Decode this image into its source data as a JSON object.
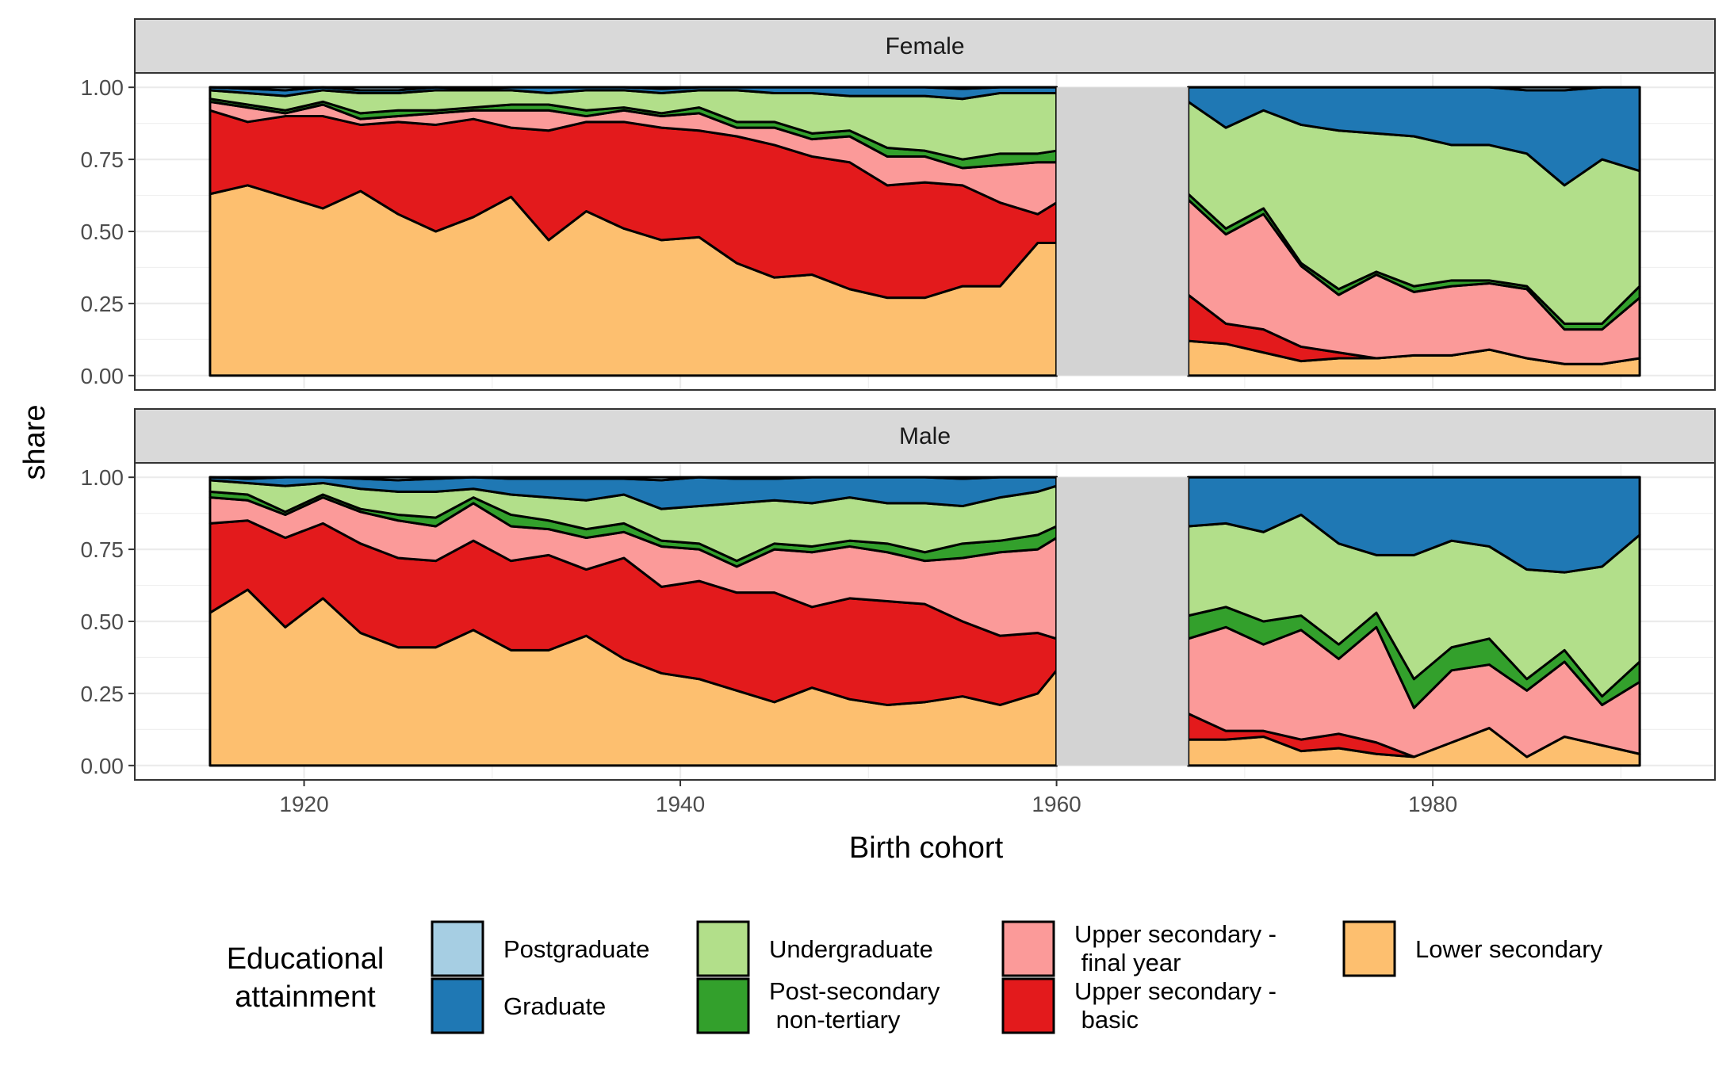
{
  "chart_data": {
    "type": "area",
    "stacked": true,
    "xlabel": "Birth cohort",
    "ylabel": "share",
    "xlim": [
      1911,
      1995
    ],
    "ylim": [
      -0.05,
      1.05
    ],
    "x_ticks": [
      1920,
      1940,
      1960,
      1980
    ],
    "x_tick_labels": [
      "1920",
      "1940",
      "1960",
      "1980"
    ],
    "y_ticks": [
      0,
      0.25,
      0.5,
      0.75,
      1.0
    ],
    "y_tick_labels": [
      "0.00",
      "0.25",
      "0.50",
      "0.75",
      "1.00"
    ],
    "gap_band": [
      1960,
      1967
    ],
    "gap_color": "#d3d3d3",
    "legend": {
      "title_lines": [
        "Educational",
        "attainment"
      ],
      "position": "bottom",
      "items": [
        {
          "key": "postgraduate",
          "label_lines": [
            "Postgraduate"
          ],
          "color": "#a6cee3"
        },
        {
          "key": "graduate",
          "label_lines": [
            "Graduate"
          ],
          "color": "#1f78b4"
        },
        {
          "key": "undergraduate",
          "label_lines": [
            "Undergraduate"
          ],
          "color": "#b2df8a"
        },
        {
          "key": "post_secondary",
          "label_lines": [
            "Post-secondary",
            " non-tertiary"
          ],
          "color": "#33a02c"
        },
        {
          "key": "upper_final",
          "label_lines": [
            "Upper secondary -",
            " final year"
          ],
          "color": "#fb9a99"
        },
        {
          "key": "upper_basic",
          "label_lines": [
            "Upper secondary -",
            " basic"
          ],
          "color": "#e31a1c"
        },
        {
          "key": "lower_secondary",
          "label_lines": [
            "Lower secondary"
          ],
          "color": "#fdbf6f"
        }
      ]
    },
    "panels": [
      {
        "title": "Female",
        "segments": [
          {
            "x": [
              1915,
              1917,
              1919,
              1921,
              1923,
              1925,
              1927,
              1929,
              1931,
              1933,
              1935,
              1937,
              1939,
              1941,
              1943,
              1945,
              1947,
              1949,
              1951,
              1953,
              1955,
              1957,
              1959,
              1960
            ],
            "lower_secondary": [
              0.63,
              0.66,
              0.62,
              0.58,
              0.64,
              0.56,
              0.5,
              0.55,
              0.62,
              0.47,
              0.57,
              0.51,
              0.47,
              0.48,
              0.39,
              0.34,
              0.35,
              0.3,
              0.27,
              0.27,
              0.31,
              0.31,
              0.46,
              0.46
            ],
            "upper_basic": [
              0.92,
              0.88,
              0.9,
              0.9,
              0.87,
              0.88,
              0.87,
              0.89,
              0.86,
              0.85,
              0.88,
              0.88,
              0.86,
              0.85,
              0.83,
              0.8,
              0.76,
              0.74,
              0.66,
              0.67,
              0.66,
              0.6,
              0.56,
              0.6
            ],
            "upper_final": [
              0.95,
              0.93,
              0.91,
              0.94,
              0.89,
              0.9,
              0.91,
              0.92,
              0.92,
              0.92,
              0.9,
              0.92,
              0.9,
              0.91,
              0.86,
              0.86,
              0.82,
              0.83,
              0.76,
              0.76,
              0.72,
              0.73,
              0.74,
              0.74
            ],
            "post_secondary": [
              0.96,
              0.94,
              0.92,
              0.95,
              0.91,
              0.92,
              0.92,
              0.93,
              0.94,
              0.94,
              0.92,
              0.93,
              0.91,
              0.93,
              0.88,
              0.88,
              0.84,
              0.85,
              0.79,
              0.78,
              0.75,
              0.77,
              0.77,
              0.78
            ],
            "undergraduate": [
              0.99,
              0.98,
              0.97,
              0.99,
              0.98,
              0.98,
              0.99,
              0.99,
              0.99,
              0.98,
              0.99,
              0.99,
              0.98,
              0.99,
              0.99,
              0.98,
              0.98,
              0.97,
              0.97,
              0.97,
              0.96,
              0.98,
              0.98,
              0.98
            ],
            "graduate": [
              1.0,
              0.995,
              0.99,
              1.0,
              0.99,
              0.99,
              1.0,
              0.995,
              1.0,
              1.0,
              1.0,
              1.0,
              0.995,
              1.0,
              1.0,
              1.0,
              1.0,
              1.0,
              1.0,
              1.0,
              0.995,
              1.0,
              1.0,
              1.0
            ],
            "postgraduate": [
              1.0,
              1.0,
              1.0,
              1.0,
              1.0,
              1.0,
              1.0,
              1.0,
              1.0,
              1.0,
              1.0,
              1.0,
              1.0,
              1.0,
              1.0,
              1.0,
              1.0,
              1.0,
              1.0,
              1.0,
              1.0,
              1.0,
              1.0,
              1.0
            ]
          },
          {
            "x": [
              1967,
              1969,
              1971,
              1973,
              1975,
              1977,
              1979,
              1981,
              1983,
              1985,
              1987,
              1989,
              1991
            ],
            "lower_secondary": [
              0.12,
              0.11,
              0.08,
              0.05,
              0.06,
              0.06,
              0.07,
              0.07,
              0.09,
              0.06,
              0.04,
              0.04,
              0.06
            ],
            "upper_basic": [
              0.28,
              0.18,
              0.16,
              0.1,
              0.08,
              0.06,
              0.07,
              0.07,
              0.09,
              0.06,
              0.04,
              0.04,
              0.06
            ],
            "upper_final": [
              0.61,
              0.49,
              0.56,
              0.38,
              0.28,
              0.35,
              0.29,
              0.31,
              0.32,
              0.3,
              0.16,
              0.16,
              0.27
            ],
            "post_secondary": [
              0.63,
              0.51,
              0.58,
              0.39,
              0.3,
              0.36,
              0.31,
              0.33,
              0.33,
              0.31,
              0.18,
              0.18,
              0.31
            ],
            "undergraduate": [
              0.95,
              0.86,
              0.92,
              0.87,
              0.85,
              0.84,
              0.83,
              0.8,
              0.8,
              0.77,
              0.66,
              0.75,
              0.71
            ],
            "graduate": [
              1.0,
              1.0,
              1.0,
              1.0,
              1.0,
              1.0,
              1.0,
              1.0,
              1.0,
              0.99,
              0.99,
              1.0,
              1.0
            ],
            "postgraduate": [
              1.0,
              1.0,
              1.0,
              1.0,
              1.0,
              1.0,
              1.0,
              1.0,
              1.0,
              1.0,
              1.0,
              1.0,
              1.0
            ]
          }
        ]
      },
      {
        "title": "Male",
        "segments": [
          {
            "x": [
              1915,
              1917,
              1919,
              1921,
              1923,
              1925,
              1927,
              1929,
              1931,
              1933,
              1935,
              1937,
              1939,
              1941,
              1943,
              1945,
              1947,
              1949,
              1951,
              1953,
              1955,
              1957,
              1959,
              1960
            ],
            "lower_secondary": [
              0.53,
              0.61,
              0.48,
              0.58,
              0.46,
              0.41,
              0.41,
              0.47,
              0.4,
              0.4,
              0.45,
              0.37,
              0.32,
              0.3,
              0.26,
              0.22,
              0.27,
              0.23,
              0.21,
              0.22,
              0.24,
              0.21,
              0.25,
              0.33
            ],
            "upper_basic": [
              0.84,
              0.85,
              0.79,
              0.84,
              0.77,
              0.72,
              0.71,
              0.78,
              0.71,
              0.73,
              0.68,
              0.72,
              0.62,
              0.64,
              0.6,
              0.6,
              0.55,
              0.58,
              0.57,
              0.56,
              0.5,
              0.45,
              0.46,
              0.44
            ],
            "upper_final": [
              0.93,
              0.92,
              0.87,
              0.93,
              0.88,
              0.85,
              0.83,
              0.91,
              0.83,
              0.82,
              0.79,
              0.81,
              0.76,
              0.75,
              0.69,
              0.75,
              0.74,
              0.76,
              0.74,
              0.71,
              0.72,
              0.74,
              0.75,
              0.79
            ],
            "post_secondary": [
              0.95,
              0.94,
              0.88,
              0.94,
              0.89,
              0.87,
              0.86,
              0.93,
              0.87,
              0.85,
              0.82,
              0.84,
              0.78,
              0.77,
              0.71,
              0.77,
              0.76,
              0.78,
              0.77,
              0.74,
              0.77,
              0.78,
              0.8,
              0.83
            ],
            "undergraduate": [
              0.99,
              0.98,
              0.97,
              0.98,
              0.96,
              0.95,
              0.95,
              0.96,
              0.94,
              0.93,
              0.92,
              0.94,
              0.89,
              0.9,
              0.91,
              0.92,
              0.91,
              0.93,
              0.91,
              0.91,
              0.9,
              0.93,
              0.95,
              0.97
            ],
            "graduate": [
              1.0,
              0.995,
              1.0,
              1.0,
              0.995,
              0.99,
              0.995,
              1.0,
              0.995,
              0.995,
              0.995,
              0.995,
              0.99,
              1.0,
              0.995,
              0.995,
              1.0,
              1.0,
              1.0,
              1.0,
              0.995,
              1.0,
              1.0,
              1.0
            ],
            "postgraduate": [
              1.0,
              1.0,
              1.0,
              1.0,
              1.0,
              1.0,
              1.0,
              1.0,
              1.0,
              1.0,
              1.0,
              1.0,
              1.0,
              1.0,
              1.0,
              1.0,
              1.0,
              1.0,
              1.0,
              1.0,
              1.0,
              1.0,
              1.0,
              1.0
            ]
          },
          {
            "x": [
              1967,
              1969,
              1971,
              1973,
              1975,
              1977,
              1979,
              1981,
              1983,
              1985,
              1987,
              1989,
              1991
            ],
            "lower_secondary": [
              0.09,
              0.09,
              0.1,
              0.05,
              0.06,
              0.04,
              0.03,
              0.08,
              0.13,
              0.03,
              0.1,
              0.07,
              0.04
            ],
            "upper_basic": [
              0.18,
              0.12,
              0.12,
              0.09,
              0.11,
              0.08,
              0.03,
              0.08,
              0.13,
              0.03,
              0.1,
              0.07,
              0.04
            ],
            "upper_final": [
              0.44,
              0.48,
              0.42,
              0.47,
              0.37,
              0.48,
              0.2,
              0.33,
              0.35,
              0.26,
              0.36,
              0.21,
              0.29
            ],
            "post_secondary": [
              0.52,
              0.55,
              0.5,
              0.52,
              0.42,
              0.53,
              0.3,
              0.41,
              0.44,
              0.3,
              0.4,
              0.24,
              0.36
            ],
            "undergraduate": [
              0.83,
              0.84,
              0.81,
              0.87,
              0.77,
              0.73,
              0.73,
              0.78,
              0.76,
              0.68,
              0.67,
              0.69,
              0.8
            ],
            "graduate": [
              1.0,
              1.0,
              1.0,
              1.0,
              1.0,
              1.0,
              1.0,
              1.0,
              1.0,
              1.0,
              1.0,
              1.0,
              1.0
            ],
            "postgraduate": [
              1.0,
              1.0,
              1.0,
              1.0,
              1.0,
              1.0,
              1.0,
              1.0,
              1.0,
              1.0,
              1.0,
              1.0,
              1.0
            ]
          }
        ]
      }
    ]
  }
}
